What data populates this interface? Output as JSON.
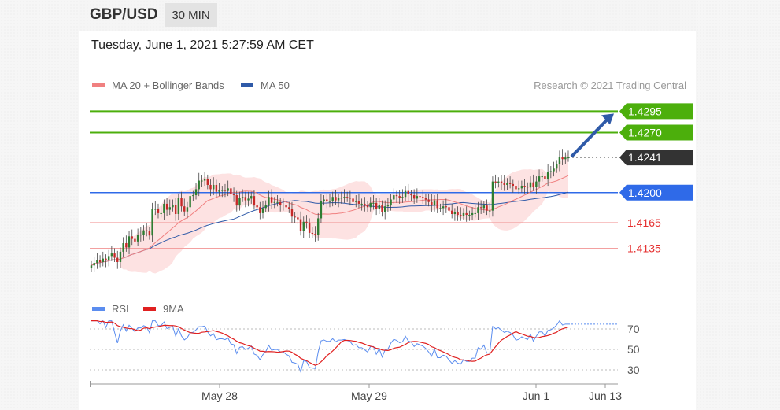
{
  "header": {
    "symbol": "GBP/USD",
    "timeframe": "30 MIN",
    "datetime": "Tuesday, June 1, 2021 5:27:59 AM CET"
  },
  "price_panel": {
    "legend": [
      {
        "label": "MA 20 + Bollinger Bands",
        "color": "#f08080"
      },
      {
        "label": "MA 50",
        "color": "#2f5aa8"
      }
    ],
    "copyright": "Research © 2021 Trading Central"
  },
  "rsi_panel": {
    "legend": [
      {
        "label": "RSI",
        "color": "#5b8def"
      },
      {
        "label": "9MA",
        "color": "#e02020"
      }
    ]
  },
  "x_axis_labels": [
    "May 28",
    "May 29",
    "Jun 1",
    "Jun 13"
  ],
  "chart_data": [
    {
      "type": "candlestick",
      "title": "GBP/USD",
      "ylim": [
        1.4085,
        1.431
      ],
      "levels": [
        {
          "label": "1.4295",
          "value": 1.4295,
          "style": "resistance",
          "color": "#4caf0c"
        },
        {
          "label": "1.4270",
          "value": 1.427,
          "style": "resistance",
          "color": "#4caf0c"
        },
        {
          "label": "1.4241",
          "value": 1.4241,
          "style": "last",
          "color": "#333333"
        },
        {
          "label": "1.4200",
          "value": 1.42,
          "style": "pivot",
          "color": "#2f6ae8"
        },
        {
          "label": "1.4165",
          "value": 1.4165,
          "style": "support",
          "color": "#e53030"
        },
        {
          "label": "1.4135",
          "value": 1.4135,
          "style": "support",
          "color": "#e53030"
        }
      ],
      "close": [
        1.4115,
        1.4118,
        1.4121,
        1.4119,
        1.4123,
        1.4121,
        1.4126,
        1.4129,
        1.4124,
        1.4119,
        1.4131,
        1.4141,
        1.4136,
        1.4149,
        1.4146,
        1.4143,
        1.4151,
        1.4151,
        1.4156,
        1.4155,
        1.415,
        1.4181,
        1.4181,
        1.4176,
        1.4176,
        1.4187,
        1.418,
        1.4183,
        1.4186,
        1.4175,
        1.4194,
        1.4184,
        1.4178,
        1.4183,
        1.4196,
        1.4197,
        1.4204,
        1.4214,
        1.4214,
        1.4216,
        1.4209,
        1.4204,
        1.4209,
        1.4201,
        1.4203,
        1.4203,
        1.4202,
        1.4205,
        1.4198,
        1.4197,
        1.4185,
        1.4194,
        1.4195,
        1.4191,
        1.4193,
        1.4196,
        1.4185,
        1.4183,
        1.4176,
        1.4182,
        1.4186,
        1.4195,
        1.4188,
        1.4189,
        1.4189,
        1.4186,
        1.4186,
        1.4183,
        1.4181,
        1.4172,
        1.4171,
        1.4169,
        1.4155,
        1.4166,
        1.4165,
        1.4153,
        1.4152,
        1.4151,
        1.417,
        1.419,
        1.4192,
        1.419,
        1.419,
        1.4195,
        1.4191,
        1.4194,
        1.4194,
        1.4195,
        1.4194,
        1.4193,
        1.4189,
        1.419,
        1.4187,
        1.4187,
        1.4185,
        1.4183,
        1.4188,
        1.4188,
        1.4181,
        1.4186,
        1.4177,
        1.4184,
        1.4185,
        1.4192,
        1.4197,
        1.4196,
        1.4194,
        1.4195,
        1.4202,
        1.4198,
        1.4197,
        1.4193,
        1.4196,
        1.4195,
        1.4194,
        1.4192,
        1.4189,
        1.4185,
        1.4191,
        1.4182,
        1.4182,
        1.4184,
        1.4183,
        1.4179,
        1.4175,
        1.4177,
        1.4174,
        1.4173,
        1.4176,
        1.4174,
        1.4174,
        1.4176,
        1.4176,
        1.4183,
        1.4182,
        1.4185,
        1.4179,
        1.4179,
        1.4213,
        1.4211,
        1.4213,
        1.4211,
        1.4209,
        1.4211,
        1.421,
        1.4208,
        1.4204,
        1.4205,
        1.4208,
        1.4207,
        1.4206,
        1.4212,
        1.4207,
        1.4213,
        1.4219,
        1.4219,
        1.4216,
        1.4224,
        1.4225,
        1.4228,
        1.4233,
        1.4242,
        1.4239,
        1.4241,
        1.4241
      ]
    },
    {
      "type": "line",
      "title": "RSI",
      "ylim": [
        20,
        80
      ],
      "yticks": [
        70,
        50,
        30
      ],
      "series": [
        {
          "name": "RSI"
        },
        {
          "name": "9MA"
        }
      ]
    }
  ]
}
